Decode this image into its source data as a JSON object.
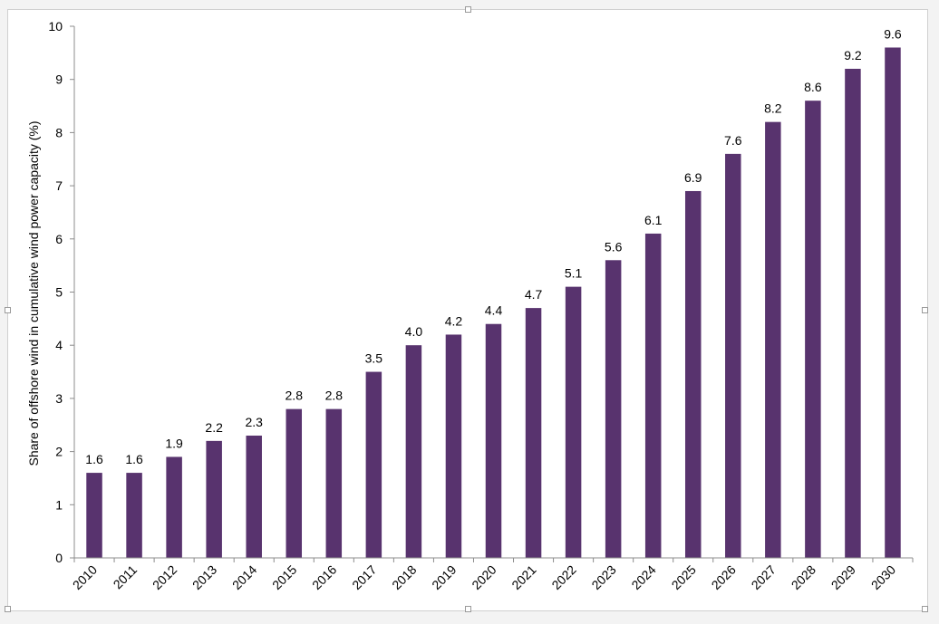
{
  "chart_data": {
    "type": "bar",
    "title": "",
    "xlabel": "",
    "ylabel": "Share of offshore wind in cumulative wind power capacity (%)",
    "categories": [
      "2010",
      "2011",
      "2012",
      "2013",
      "2014",
      "2015",
      "2016",
      "2017",
      "2018",
      "2019",
      "2020",
      "2021",
      "2022",
      "2023",
      "2024",
      "2025",
      "2026",
      "2027",
      "2028",
      "2029",
      "2030"
    ],
    "values": [
      1.6,
      1.6,
      1.9,
      2.2,
      2.3,
      2.8,
      2.8,
      3.5,
      4.0,
      4.2,
      4.4,
      4.7,
      5.1,
      5.6,
      6.1,
      6.9,
      7.6,
      8.2,
      8.6,
      9.2,
      9.6
    ],
    "data_labels": [
      "1.6",
      "1.6",
      "1.9",
      "2.2",
      "2.3",
      "2.8",
      "2.8",
      "3.5",
      "4.0",
      "4.2",
      "4.4",
      "4.7",
      "5.1",
      "5.6",
      "6.1",
      "6.9",
      "7.6",
      "8.2",
      "8.6",
      "9.2",
      "9.6"
    ],
    "ylim": [
      0,
      10
    ],
    "yticks": [
      "0",
      "1",
      "2",
      "3",
      "4",
      "5",
      "6",
      "7",
      "8",
      "9",
      "10"
    ],
    "grid": false,
    "legend": "none",
    "bar_color": "#58336e"
  }
}
